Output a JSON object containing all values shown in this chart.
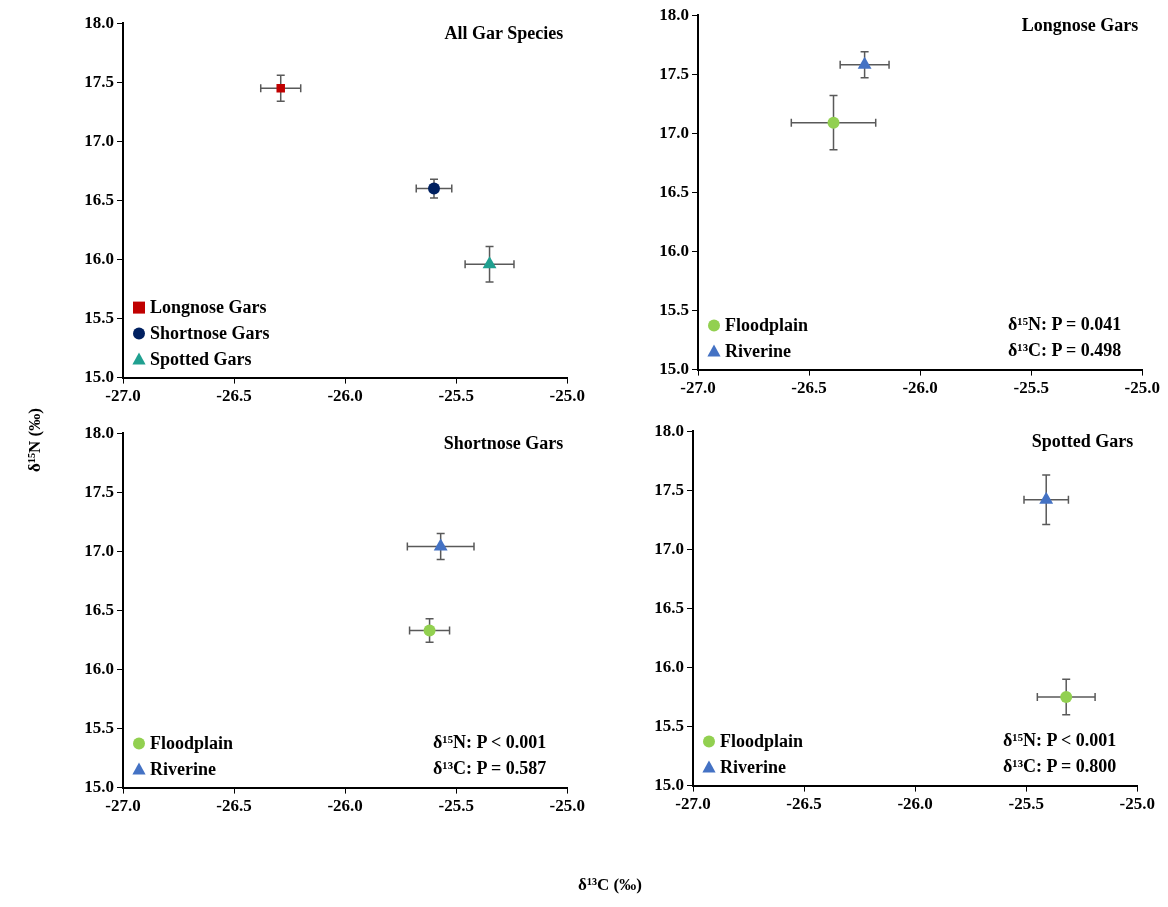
{
  "chart_data": [
    {
      "type": "scatter",
      "title": "All Gar Species",
      "ylabel": "δ¹⁵N (‰)",
      "legend": "bottom left",
      "series": [
        {
          "name": "Longnose Gars",
          "color": "#c00000",
          "marker": "square",
          "x": [
            -26.29
          ],
          "values": [
            17.45
          ],
          "errors": [
            0.11
          ],
          "xerrors": [
            0.09
          ]
        },
        {
          "name": "Shortnose Gars",
          "color": "#002060",
          "marker": "circle",
          "x": [
            -25.6
          ],
          "values": [
            16.6
          ],
          "errors": [
            0.08
          ],
          "xerrors": [
            0.08
          ]
        },
        {
          "name": "Spotted Gars",
          "color": "#20a090",
          "marker": "triangle",
          "x": [
            -25.35
          ],
          "values": [
            15.96
          ],
          "errors": [
            0.15
          ],
          "xerrors": [
            0.11
          ]
        }
      ],
      "xlim": [
        -27,
        -25
      ],
      "xticks": [
        {
          "value": -27,
          "label": "-27.0"
        },
        {
          "value": -26.5,
          "label": "-26.5"
        },
        {
          "value": -26,
          "label": "-26.0"
        },
        {
          "value": -25.5,
          "label": "-25.5"
        },
        {
          "value": -25,
          "label": "-25.0"
        }
      ],
      "ylim": [
        15,
        18
      ],
      "yticks": [
        {
          "value": 15,
          "label": "15.0"
        },
        {
          "value": 15.5,
          "label": "15.5"
        },
        {
          "value": 16,
          "label": "16.0"
        },
        {
          "value": 16.5,
          "label": "16.5"
        },
        {
          "value": 17,
          "label": "17.0"
        },
        {
          "value": 17.5,
          "label": "17.5"
        },
        {
          "value": 18,
          "label": "18.0"
        }
      ],
      "grid": false
    },
    {
      "type": "scatter",
      "title": "Longnose Gars",
      "legend": "bottom left",
      "annotations": [
        "δ¹⁵N: P = 0.041",
        "δ¹³C: P = 0.498"
      ],
      "series": [
        {
          "name": "Floodplain",
          "color": "#92d050",
          "marker": "circle",
          "x": [
            -26.39
          ],
          "values": [
            17.09
          ],
          "errors": [
            0.23
          ],
          "xerrors": [
            0.19
          ]
        },
        {
          "name": "Riverine",
          "color": "#4472c4",
          "marker": "triangle",
          "x": [
            -26.25
          ],
          "values": [
            17.58
          ],
          "errors": [
            0.11
          ],
          "xerrors": [
            0.11
          ]
        }
      ],
      "xlim": [
        -27,
        -25
      ],
      "xticks": [
        {
          "value": -27,
          "label": "-27.0"
        },
        {
          "value": -26.5,
          "label": "-26.5"
        },
        {
          "value": -26,
          "label": "-26.0"
        },
        {
          "value": -25.5,
          "label": "-25.5"
        },
        {
          "value": -25,
          "label": "-25.0"
        }
      ],
      "ylim": [
        15,
        18
      ],
      "yticks": [
        {
          "value": 15,
          "label": "15.0"
        },
        {
          "value": 15.5,
          "label": "15.5"
        },
        {
          "value": 16,
          "label": "16.0"
        },
        {
          "value": 16.5,
          "label": "16.5"
        },
        {
          "value": 17,
          "label": "17.0"
        },
        {
          "value": 17.5,
          "label": "17.5"
        },
        {
          "value": 18,
          "label": "18.0"
        }
      ],
      "grid": false
    },
    {
      "type": "scatter",
      "title": "Shortnose Gars",
      "xlabel": "δ¹³C (‰)",
      "legend": "bottom left",
      "annotations": [
        "δ¹⁵N: P < 0.001",
        "δ¹³C: P = 0.587"
      ],
      "series": [
        {
          "name": "Floodplain",
          "color": "#92d050",
          "marker": "circle",
          "x": [
            -25.62
          ],
          "values": [
            16.33
          ],
          "errors": [
            0.1
          ],
          "xerrors": [
            0.09
          ]
        },
        {
          "name": "Riverine",
          "color": "#4472c4",
          "marker": "triangle",
          "x": [
            -25.57
          ],
          "values": [
            17.04
          ],
          "errors": [
            0.11
          ],
          "xerrors": [
            0.15
          ]
        }
      ],
      "xlim": [
        -27,
        -25
      ],
      "xticks": [
        {
          "value": -27,
          "label": "-27.0"
        },
        {
          "value": -26.5,
          "label": "-26.5"
        },
        {
          "value": -26,
          "label": "-26.0"
        },
        {
          "value": -25.5,
          "label": "-25.5"
        },
        {
          "value": -25,
          "label": "-25.0"
        }
      ],
      "ylim": [
        15,
        18
      ],
      "yticks": [
        {
          "value": 15,
          "label": "15.0"
        },
        {
          "value": 15.5,
          "label": "15.5"
        },
        {
          "value": 16,
          "label": "16.0"
        },
        {
          "value": 16.5,
          "label": "16.5"
        },
        {
          "value": 17,
          "label": "17.0"
        },
        {
          "value": 17.5,
          "label": "17.5"
        },
        {
          "value": 18,
          "label": "18.0"
        }
      ],
      "grid": false
    },
    {
      "type": "scatter",
      "title": "Spotted Gars",
      "legend": "bottom left",
      "annotations": [
        "δ¹⁵N: P < 0.001",
        "δ¹³C: P = 0.800"
      ],
      "series": [
        {
          "name": "Floodplain",
          "color": "#92d050",
          "marker": "circle",
          "x": [
            -25.32
          ],
          "values": [
            15.75
          ],
          "errors": [
            0.15
          ],
          "xerrors": [
            0.13
          ]
        },
        {
          "name": "Riverine",
          "color": "#4472c4",
          "marker": "triangle",
          "x": [
            -25.41
          ],
          "values": [
            17.42
          ],
          "errors": [
            0.21
          ],
          "xerrors": [
            0.1
          ]
        }
      ],
      "xlim": [
        -27,
        -25
      ],
      "xticks": [
        {
          "value": -27,
          "label": "-27.0"
        },
        {
          "value": -26.5,
          "label": "-26.5"
        },
        {
          "value": -26,
          "label": "-26.0"
        },
        {
          "value": -25.5,
          "label": "-25.5"
        },
        {
          "value": -25,
          "label": "-25.0"
        }
      ],
      "ylim": [
        15,
        18
      ],
      "yticks": [
        {
          "value": 15,
          "label": "15.0"
        },
        {
          "value": 15.5,
          "label": "15.5"
        },
        {
          "value": 16,
          "label": "16.0"
        },
        {
          "value": 16.5,
          "label": "16.5"
        },
        {
          "value": 17,
          "label": "17.0"
        },
        {
          "value": 17.5,
          "label": "17.5"
        },
        {
          "value": 18,
          "label": "18.0"
        }
      ],
      "grid": false
    }
  ]
}
